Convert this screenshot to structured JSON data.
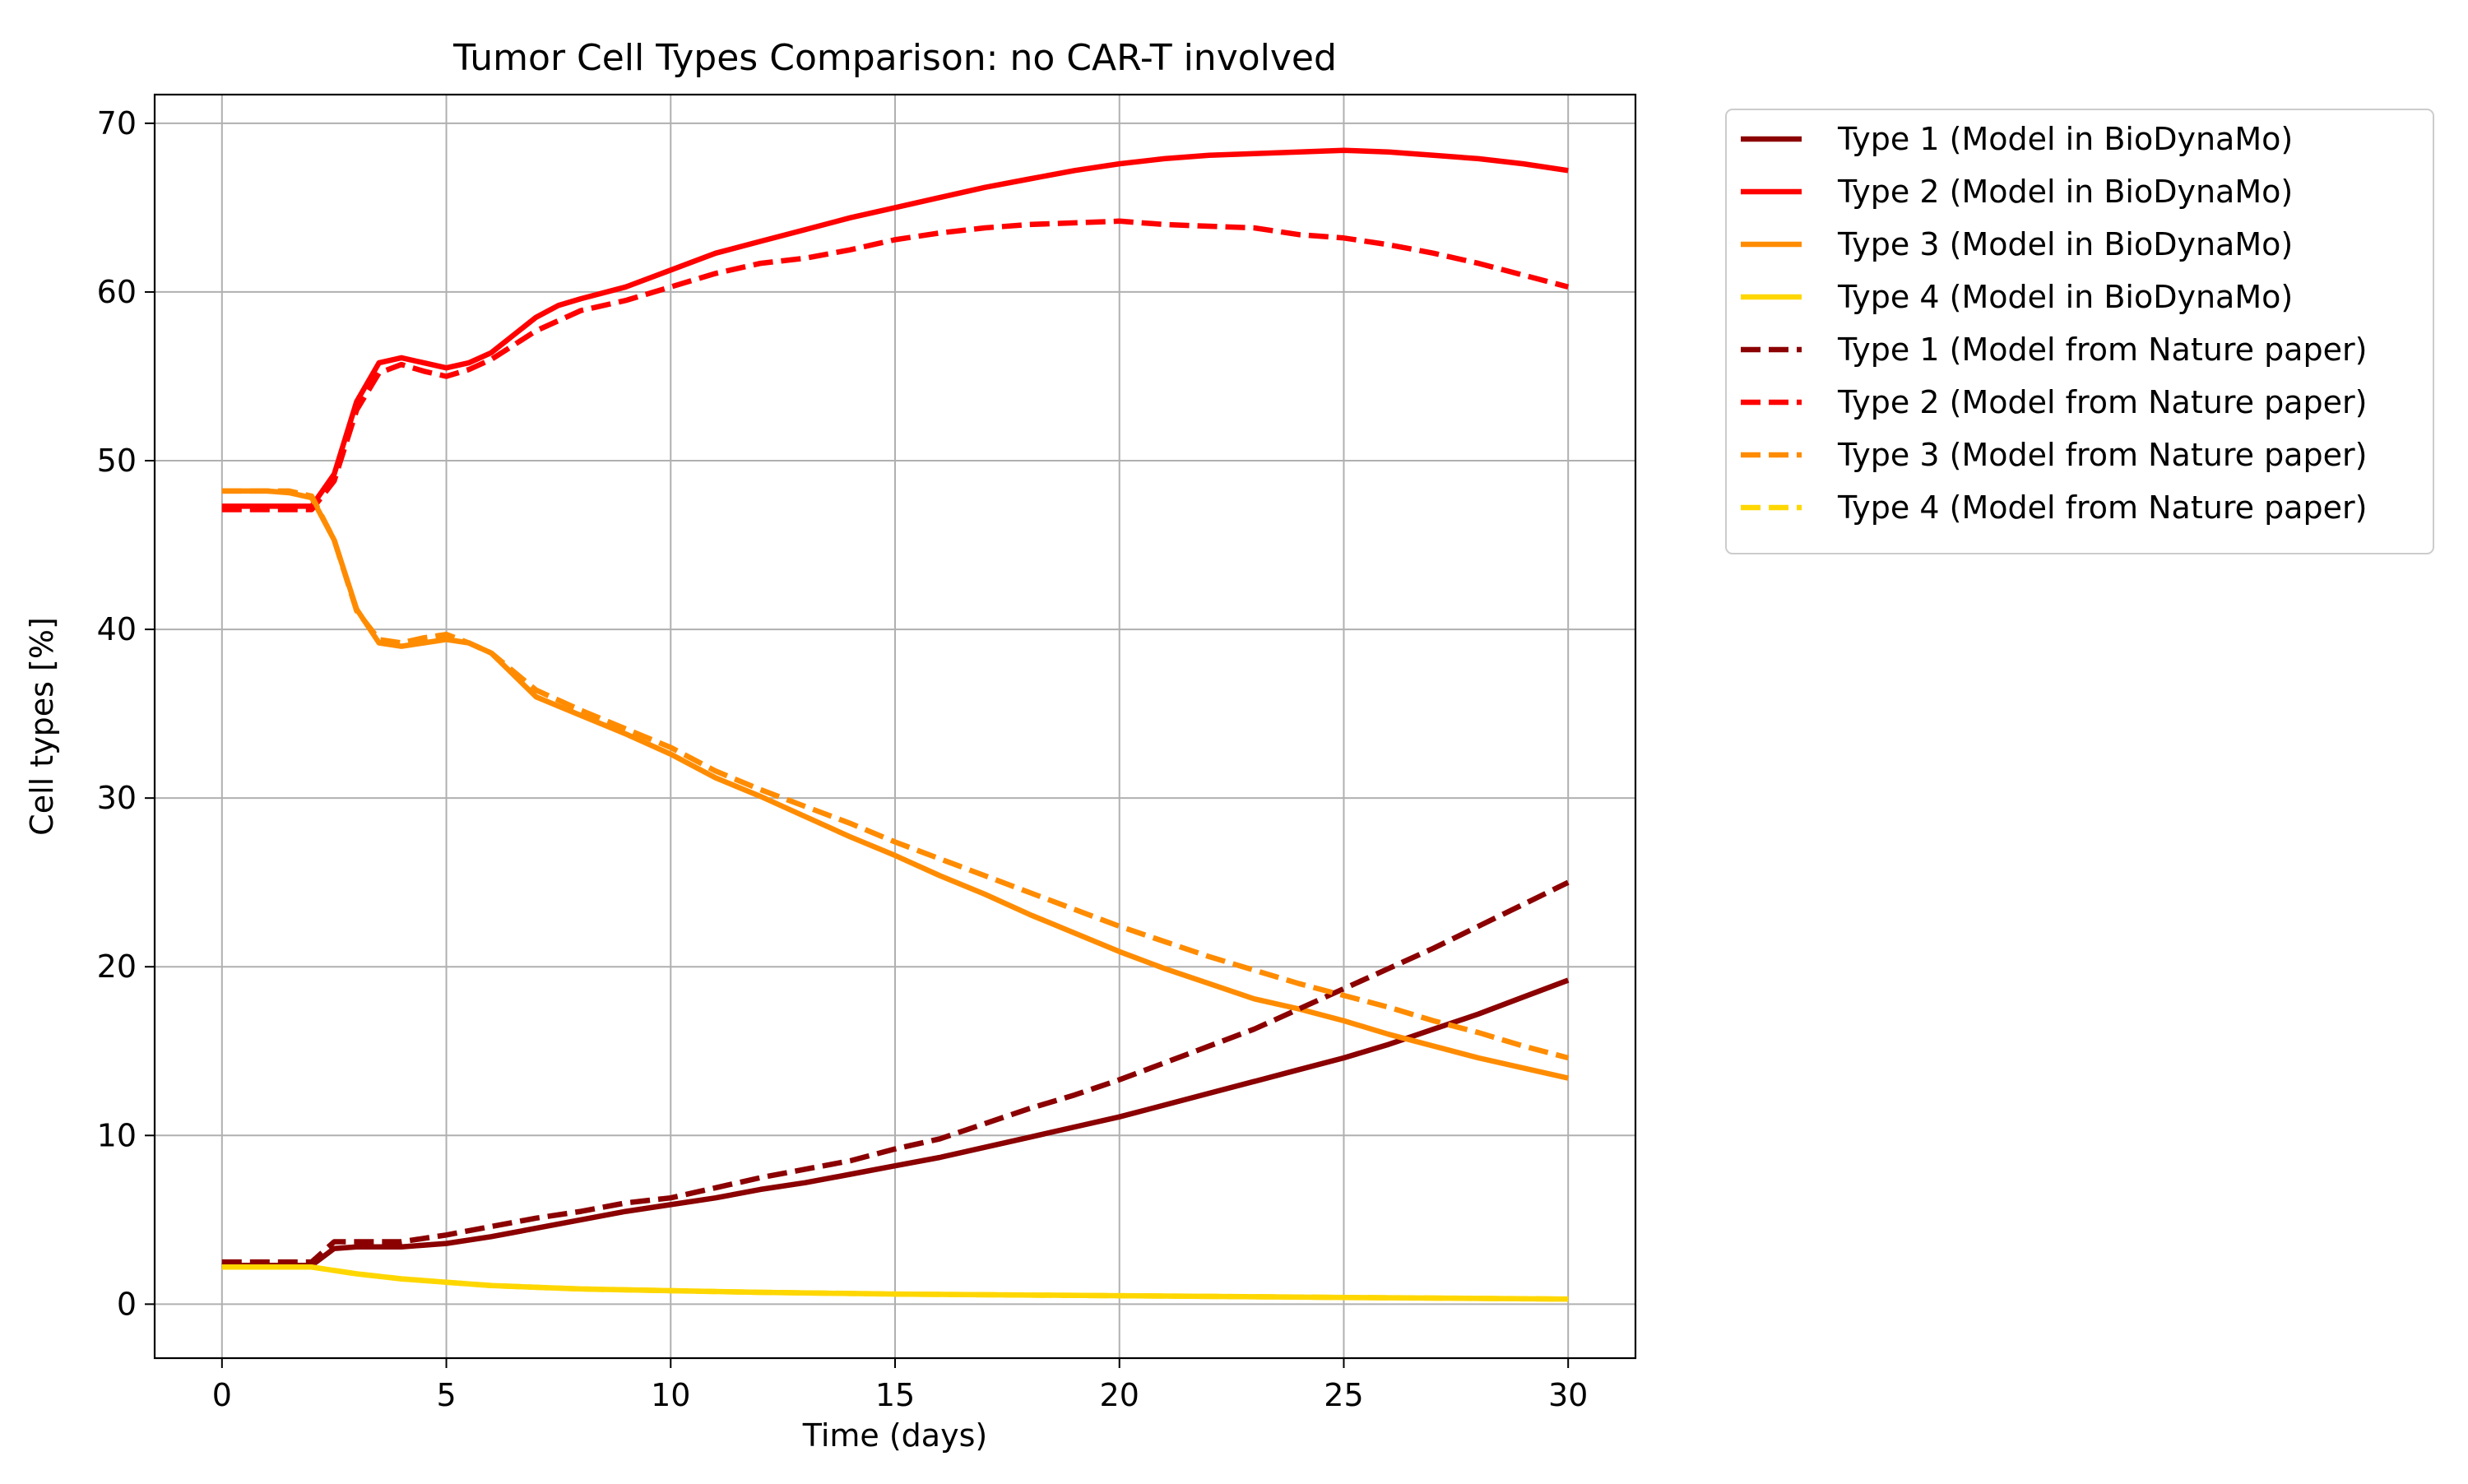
{
  "chart_data": {
    "type": "line",
    "title": "Tumor Cell Types Comparison: no CAR-T involved",
    "xlabel": "Time (days)",
    "ylabel": "Cell types [%]",
    "xlim": [
      -1.5,
      31.5
    ],
    "ylim": [
      -3.2,
      71.7
    ],
    "xticks": [
      0,
      5,
      10,
      15,
      20,
      25,
      30
    ],
    "yticks": [
      0,
      10,
      20,
      30,
      40,
      50,
      60,
      70
    ],
    "grid": true,
    "legend_position": "outside-right",
    "series": [
      {
        "name": "Type 1 (Model in BioDynaMo)",
        "color": "#8b0000",
        "dash": "solid",
        "x": [
          0,
          2,
          2.5,
          3,
          4,
          5,
          6,
          7,
          8,
          9,
          10,
          11,
          12,
          13,
          14,
          15,
          16,
          17,
          18,
          19,
          20,
          21,
          22,
          23,
          24,
          25,
          26,
          27,
          28,
          29,
          30
        ],
        "y": [
          2.3,
          2.3,
          3.3,
          3.4,
          3.4,
          3.6,
          4.0,
          4.5,
          5.0,
          5.5,
          5.9,
          6.3,
          6.8,
          7.2,
          7.7,
          8.2,
          8.7,
          9.3,
          9.9,
          10.5,
          11.1,
          11.8,
          12.5,
          13.2,
          13.9,
          14.6,
          15.4,
          16.3,
          17.2,
          18.2,
          19.2
        ]
      },
      {
        "name": "Type 2 (Model in BioDynaMo)",
        "color": "#ff0000",
        "dash": "solid",
        "x": [
          0,
          2,
          2.5,
          3,
          3.5,
          4,
          4.5,
          5,
          5.5,
          6,
          7,
          7.5,
          8,
          9,
          10,
          11,
          12,
          13,
          14,
          15,
          16,
          17,
          18,
          19,
          20,
          21,
          22,
          23,
          24,
          25,
          26,
          27,
          28,
          29,
          30
        ],
        "y": [
          47.3,
          47.3,
          49.2,
          53.5,
          55.8,
          56.1,
          55.8,
          55.5,
          55.8,
          56.4,
          58.5,
          59.2,
          59.6,
          60.3,
          61.3,
          62.3,
          63.0,
          63.7,
          64.4,
          65.0,
          65.6,
          66.2,
          66.7,
          67.2,
          67.6,
          67.9,
          68.1,
          68.2,
          68.3,
          68.4,
          68.3,
          68.1,
          67.9,
          67.6,
          67.2
        ]
      },
      {
        "name": "Type 3 (Model in BioDynaMo)",
        "color": "#ff8c00",
        "dash": "solid",
        "x": [
          0,
          1,
          1.5,
          2,
          2.5,
          3,
          3.5,
          4,
          4.5,
          5,
          5.5,
          6,
          7,
          8,
          9,
          10,
          11,
          12,
          13,
          14,
          15,
          16,
          17,
          18,
          19,
          20,
          21,
          22,
          23,
          24,
          25,
          26,
          27,
          28,
          29,
          30
        ],
        "y": [
          48.2,
          48.2,
          48.1,
          47.8,
          45.3,
          41.2,
          39.2,
          39.0,
          39.2,
          39.4,
          39.2,
          38.6,
          36.0,
          34.9,
          33.8,
          32.6,
          31.2,
          30.1,
          28.9,
          27.7,
          26.6,
          25.4,
          24.3,
          23.1,
          22.0,
          20.9,
          19.9,
          19.0,
          18.1,
          17.5,
          16.8,
          16.0,
          15.3,
          14.6,
          14.0,
          13.4
        ]
      },
      {
        "name": "Type 4 (Model in BioDynaMo)",
        "color": "#ffd700",
        "dash": "solid",
        "x": [
          0,
          2,
          3,
          4,
          5,
          6,
          7,
          8,
          10,
          12,
          15,
          20,
          25,
          30
        ],
        "y": [
          2.2,
          2.2,
          1.8,
          1.5,
          1.3,
          1.1,
          1.0,
          0.9,
          0.8,
          0.7,
          0.6,
          0.5,
          0.4,
          0.3
        ]
      },
      {
        "name": "Type 1 (Model from Nature paper)",
        "color": "#8b0000",
        "dash": "dashed",
        "x": [
          0,
          1,
          2,
          2.5,
          3,
          4,
          5,
          6,
          7,
          8,
          9,
          10,
          11,
          12,
          13,
          14,
          15,
          16,
          17,
          18,
          19,
          20,
          21,
          22,
          23,
          24,
          25,
          26,
          27,
          28,
          29,
          30
        ],
        "y": [
          2.5,
          2.5,
          2.5,
          3.7,
          3.7,
          3.7,
          4.1,
          4.6,
          5.1,
          5.5,
          6.0,
          6.3,
          6.9,
          7.5,
          8.0,
          8.5,
          9.2,
          9.8,
          10.7,
          11.6,
          12.4,
          13.3,
          14.3,
          15.3,
          16.3,
          17.5,
          18.7,
          19.9,
          21.1,
          22.4,
          23.7,
          25.0
        ]
      },
      {
        "name": "Type 2 (Model from Nature paper)",
        "color": "#ff0000",
        "dash": "dashed",
        "x": [
          0,
          2,
          2.5,
          3,
          3.5,
          4,
          4.5,
          5,
          5.5,
          6,
          7,
          8,
          9,
          10,
          11,
          12,
          13,
          14,
          15,
          16,
          17,
          18,
          19,
          20,
          21,
          22,
          23,
          24,
          25,
          26,
          27,
          28,
          29,
          30
        ],
        "y": [
          47.1,
          47.1,
          48.8,
          53.0,
          55.2,
          55.7,
          55.3,
          55.0,
          55.4,
          56.0,
          57.7,
          58.9,
          59.5,
          60.3,
          61.1,
          61.7,
          62.0,
          62.5,
          63.1,
          63.5,
          63.8,
          64.0,
          64.1,
          64.2,
          64.0,
          63.9,
          63.8,
          63.4,
          63.2,
          62.8,
          62.3,
          61.7,
          61.0,
          60.3
        ]
      },
      {
        "name": "Type 3 (Model from Nature paper)",
        "color": "#ff8c00",
        "dash": "dashed",
        "x": [
          0,
          1,
          1.5,
          2,
          2.5,
          3,
          3.5,
          4,
          4.5,
          5,
          5.5,
          6,
          7,
          8,
          9,
          10,
          11,
          12,
          13,
          14,
          15,
          16,
          17,
          18,
          19,
          20,
          21,
          22,
          23,
          24,
          25,
          26,
          27,
          28,
          29,
          30
        ],
        "y": [
          48.2,
          48.2,
          48.2,
          47.9,
          45.3,
          41.1,
          39.4,
          39.2,
          39.5,
          39.7,
          39.2,
          38.6,
          36.4,
          35.2,
          34.1,
          33.0,
          31.6,
          30.5,
          29.5,
          28.5,
          27.4,
          26.4,
          25.4,
          24.4,
          23.4,
          22.4,
          21.5,
          20.6,
          19.8,
          19.0,
          18.3,
          17.6,
          16.8,
          16.1,
          15.3,
          14.6
        ]
      },
      {
        "name": "Type 4 (Model from Nature paper)",
        "color": "#ffd700",
        "dash": "dashed",
        "x": [
          0,
          2,
          3,
          4,
          5,
          6,
          7,
          8,
          10,
          12,
          15,
          20,
          25,
          30
        ],
        "y": [
          2.2,
          2.2,
          1.8,
          1.5,
          1.3,
          1.1,
          1.0,
          0.9,
          0.8,
          0.7,
          0.6,
          0.5,
          0.4,
          0.3
        ]
      }
    ]
  }
}
